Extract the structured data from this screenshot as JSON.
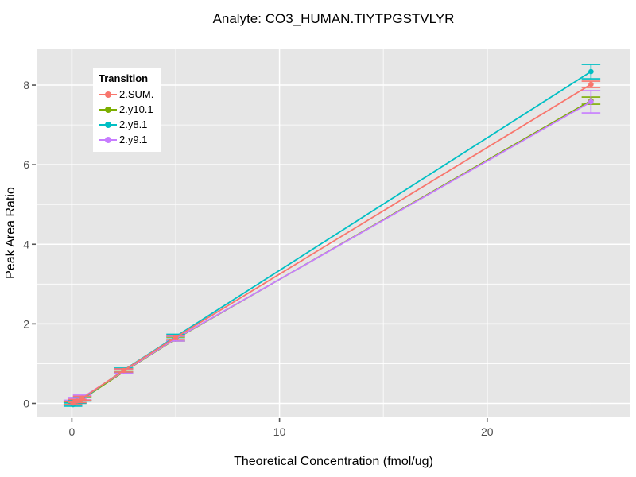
{
  "page": {
    "title": "Analyte: CO3_HUMAN.TIYTPGSTVLYR"
  },
  "chart_data": {
    "type": "line",
    "title": "Analyte: CO3_HUMAN.TIYTPGSTVLYR",
    "xlabel": "Theoretical Concentration (fmol/ug)",
    "ylabel": "Peak Area Ratio",
    "legend_title": "Transition",
    "legend_position": "top-left-inside",
    "panel_bg": "#E6E6E6",
    "grid_color": "#FFFFFF",
    "tick_color": "#555555",
    "tick_label_color": "#4D4D4D",
    "xlim": [
      -1.7,
      26.9
    ],
    "ylim": [
      -0.35,
      8.9
    ],
    "x_major_ticks": [
      0,
      10,
      20
    ],
    "x_minor_ticks": [
      5,
      15,
      25
    ],
    "y_major_ticks": [
      0,
      2,
      4,
      6,
      8
    ],
    "y_minor_ticks": [
      1,
      3,
      5,
      7
    ],
    "x": [
      0.05,
      0.25,
      0.5,
      2.5,
      5,
      25
    ],
    "error_cap_halfwidth_x": 0.45,
    "marker": "circle",
    "error_bars": "vertical",
    "draw_order": [
      "2.y10.1",
      "2.y9.1",
      "2.y8.1",
      "2.SUM."
    ],
    "series": [
      {
        "name": "2.SUM.",
        "color": "#F8766D",
        "values": [
          0.01,
          0.06,
          0.13,
          0.83,
          1.66,
          8.02
        ],
        "errors": [
          0.04,
          0.04,
          0.05,
          0.04,
          0.05,
          0.08
        ]
      },
      {
        "name": "2.y10.1",
        "color": "#7CAE00",
        "values": [
          0.0,
          0.04,
          0.11,
          0.8,
          1.62,
          7.61
        ],
        "errors": [
          0.03,
          0.03,
          0.04,
          0.04,
          0.05,
          0.09
        ]
      },
      {
        "name": "2.y8.1",
        "color": "#00BFC4",
        "values": [
          -0.03,
          0.04,
          0.11,
          0.84,
          1.68,
          8.34
        ],
        "errors": [
          0.04,
          0.04,
          0.05,
          0.05,
          0.06,
          0.18
        ]
      },
      {
        "name": "2.y9.1",
        "color": "#C77CFF",
        "values": [
          0.02,
          0.07,
          0.15,
          0.81,
          1.63,
          7.58
        ],
        "errors": [
          0.06,
          0.06,
          0.06,
          0.05,
          0.06,
          0.28
        ]
      }
    ]
  }
}
